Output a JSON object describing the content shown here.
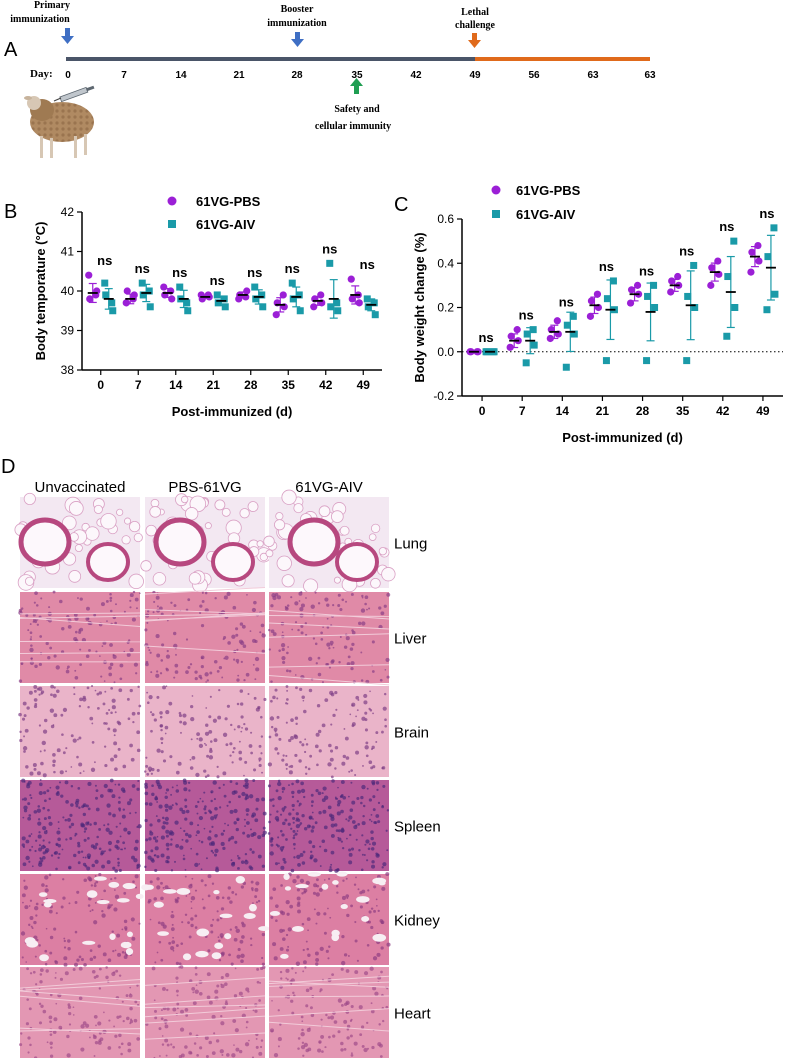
{
  "panel_labels": {
    "a": "A",
    "b": "B",
    "c": "C",
    "d": "D"
  },
  "timeline": {
    "day_label": "Day:",
    "ticks": [
      "0",
      "7",
      "14",
      "21",
      "28",
      "35",
      "42",
      "49",
      "56",
      "63",
      "63"
    ],
    "events": {
      "primary_line1": "Primary",
      "primary_line2": "immunization",
      "booster_line1": "Booster",
      "booster_line2": "immunization",
      "lethal_line1": "Lethal",
      "lethal_line2": "challenge",
      "safety_line1": "Safety and",
      "safety_line2": "cellular immunity"
    },
    "colors": {
      "immunization_phase": "#4a5568",
      "challenge_phase": "#e06a1b",
      "arrow_immunization": "#3f6fc4",
      "arrow_challenge": "#e06a1b",
      "arrow_safety": "#1f9e52"
    }
  },
  "legend": {
    "pbs": "61VG-PBS",
    "aiv": "61VG-AIV"
  },
  "colors": {
    "pbs": "#9b1fd6",
    "aiv": "#1a9aa8",
    "mean": "#000000"
  },
  "chart_data": [
    {
      "panel": "B",
      "type": "scatter",
      "ylabel": "Body temporature (°C)",
      "xlabel": "Post-immunized (d)",
      "ylim": [
        38,
        42
      ],
      "yticks": [
        "38",
        "39",
        "40",
        "41",
        "42"
      ],
      "categories": [
        "0",
        "7",
        "14",
        "21",
        "28",
        "35",
        "42",
        "49"
      ],
      "significance": [
        "ns",
        "ns",
        "ns",
        "ns",
        "ns",
        "ns",
        "ns",
        "ns"
      ],
      "series": [
        {
          "name": "61VG-PBS",
          "means": [
            39.95,
            39.8,
            39.95,
            39.85,
            39.9,
            39.65,
            39.75,
            39.9
          ],
          "points": [
            [
              40.4,
              40.0,
              39.8,
              39.9
            ],
            [
              39.7,
              39.9,
              40.0,
              39.8
            ],
            [
              40.1,
              39.8,
              39.9,
              40.0
            ],
            [
              39.9,
              39.85,
              39.8,
              39.9
            ],
            [
              39.8,
              40.0,
              39.9,
              39.85
            ],
            [
              39.4,
              39.6,
              39.7,
              39.9
            ],
            [
              39.6,
              39.7,
              39.8,
              39.9
            ],
            [
              40.3,
              39.7,
              39.8,
              39.9
            ]
          ]
        },
        {
          "name": "61VG-AIV",
          "means": [
            39.8,
            39.95,
            39.8,
            39.75,
            39.85,
            39.85,
            39.8,
            39.65
          ],
          "points": [
            [
              40.2,
              39.5,
              39.9,
              39.7
            ],
            [
              40.2,
              39.6,
              39.9,
              40.0
            ],
            [
              40.1,
              39.5,
              39.8,
              39.7
            ],
            [
              39.9,
              39.6,
              39.7,
              39.8
            ],
            [
              40.1,
              39.6,
              39.8,
              39.9
            ],
            [
              40.2,
              39.5,
              39.8,
              39.9
            ],
            [
              40.7,
              39.5,
              39.6,
              39.7
            ],
            [
              39.8,
              39.4,
              39.6,
              39.7
            ]
          ]
        }
      ]
    },
    {
      "panel": "C",
      "type": "scatter",
      "ylabel": "Body weight change (%)",
      "xlabel": "Post-immunized (d)",
      "ylim": [
        -0.2,
        0.6
      ],
      "yticks": [
        "-0.2",
        "0.0",
        "0.2",
        "0.4",
        "0.6"
      ],
      "categories": [
        "0",
        "7",
        "14",
        "21",
        "28",
        "35",
        "42",
        "49"
      ],
      "significance": [
        "ns",
        "ns",
        "ns",
        "ns",
        "ns",
        "ns",
        "ns",
        "ns"
      ],
      "series": [
        {
          "name": "61VG-PBS",
          "means": [
            0.0,
            0.05,
            0.09,
            0.21,
            0.26,
            0.3,
            0.36,
            0.43
          ],
          "points": [
            [
              0.0,
              0.0,
              0.0,
              0.0
            ],
            [
              0.02,
              0.05,
              0.07,
              0.1
            ],
            [
              0.06,
              0.08,
              0.1,
              0.14
            ],
            [
              0.16,
              0.2,
              0.23,
              0.26
            ],
            [
              0.22,
              0.26,
              0.28,
              0.3
            ],
            [
              0.27,
              0.3,
              0.32,
              0.34
            ],
            [
              0.3,
              0.35,
              0.38,
              0.41
            ],
            [
              0.36,
              0.41,
              0.45,
              0.48
            ]
          ]
        },
        {
          "name": "61VG-AIV",
          "means": [
            0.0,
            0.05,
            0.09,
            0.19,
            0.18,
            0.21,
            0.27,
            0.38
          ],
          "points": [
            [
              0.0,
              0.0,
              0.0,
              0.0
            ],
            [
              -0.05,
              0.03,
              0.08,
              0.1
            ],
            [
              -0.07,
              0.08,
              0.12,
              0.16
            ],
            [
              -0.04,
              0.19,
              0.24,
              0.32
            ],
            [
              -0.04,
              0.2,
              0.25,
              0.3
            ],
            [
              -0.04,
              0.2,
              0.25,
              0.39
            ],
            [
              0.07,
              0.2,
              0.34,
              0.5
            ],
            [
              0.19,
              0.26,
              0.43,
              0.56
            ]
          ]
        }
      ]
    }
  ],
  "histology": {
    "columns": [
      "Unvaccinated",
      "PBS-61VG",
      "61VG-AIV"
    ],
    "rows": [
      {
        "label": "Lung",
        "tissue": "lung",
        "bg": "#f3e8f2",
        "cell": "#c0568f"
      },
      {
        "label": "Liver",
        "tissue": "liver",
        "bg": "#e08aa7",
        "cell": "#8a3f86"
      },
      {
        "label": "Brain",
        "tissue": "brain",
        "bg": "#eab4c9",
        "cell": "#7f3f86"
      },
      {
        "label": "Spleen",
        "tissue": "spleen",
        "bg": "#b65a99",
        "cell": "#4f2a7a"
      },
      {
        "label": "Kidney",
        "tissue": "kidney",
        "bg": "#dc7fa3",
        "cell": "#8e3d82"
      },
      {
        "label": "Heart",
        "tissue": "heart",
        "bg": "#e397b3",
        "cell": "#a04c8a"
      }
    ]
  }
}
